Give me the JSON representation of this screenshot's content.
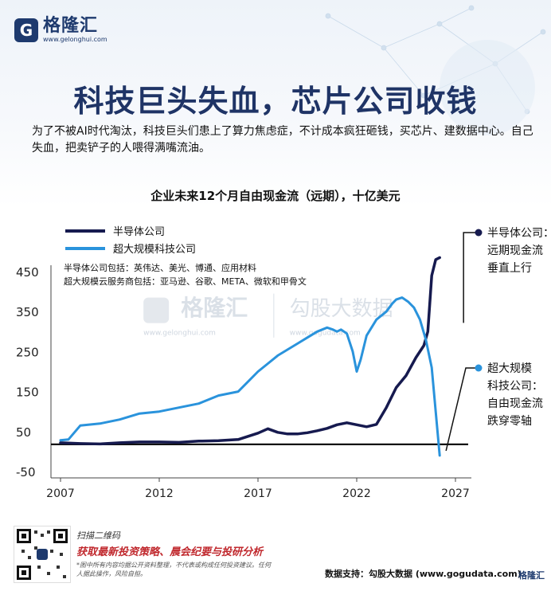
{
  "brand": {
    "mark": "G",
    "name": "格隆汇",
    "url": "www.gelonghui.com"
  },
  "headline": "科技巨头失血，芯片公司收钱",
  "subtitle": "为了不被AI时代淘汰，科技巨头们患上了算力焦虑症，不计成本疯狂砸钱，买芯片、建数据中心。自己失血，把卖铲子的人喂得满嘴流油。",
  "watermark": {
    "brand": "格隆汇",
    "url": "www.gelonghui.com",
    "partner": "勾股大数据",
    "partner_url": "www.gogudata.com"
  },
  "footer": {
    "scan_label": "扫描二维码",
    "promo": "获取最新投资策略、晨会纪要与投研分析",
    "disclaimer": "*图中所有内容均据公开资料整理，不代表或构成任何投资建议。任何人据此操作，风险自担。",
    "source": "数据支持：勾股大数据 (www.gogudata.com)",
    "corner_brand": "格隆汇"
  },
  "colors": {
    "semis": "#161a4f",
    "hyperscalers": "#2a93dc",
    "zero_line": "#111111",
    "title": "#1f3466"
  },
  "chart_data": {
    "type": "line",
    "title": "企业未来12个月自由现金流（远期），十亿美元",
    "xlabel": "",
    "ylabel": "",
    "xlim": [
      2006.2,
      2027.8
    ],
    "ylim": [
      -60,
      500
    ],
    "x_ticks": [
      "2007",
      "2012",
      "2017",
      "2022",
      "2027"
    ],
    "y_ticks": [
      "450",
      "350",
      "250",
      "150",
      "50",
      "-50"
    ],
    "legend": {
      "position": "top-left",
      "notes": [
        "半导体公司包括：英伟达、美光、博通、应用材料",
        "超大规模云服务商包括：亚马逊、谷歌、META、微软和甲骨文"
      ]
    },
    "series": [
      {
        "name": "半导体公司",
        "end_annotation": [
          "半导体公司：",
          "远期现金流",
          "垂直上行"
        ],
        "x": [
          2007.0,
          2008.0,
          2009.0,
          2010.0,
          2011.0,
          2012.0,
          2013.0,
          2014.0,
          2015.0,
          2016.0,
          2016.5,
          2017.0,
          2017.5,
          2018.0,
          2018.5,
          2019.0,
          2019.5,
          2020.0,
          2020.5,
          2021.0,
          2021.5,
          2022.0,
          2022.5,
          2023.0,
          2023.5,
          2024.0,
          2024.5,
          2025.0,
          2025.4,
          2025.6,
          2025.8,
          2026.0,
          2026.2
        ],
        "values": [
          22,
          20,
          19,
          22,
          24,
          24,
          23,
          26,
          27,
          30,
          38,
          46,
          57,
          48,
          44,
          44,
          47,
          52,
          58,
          67,
          72,
          67,
          62,
          68,
          110,
          160,
          190,
          235,
          265,
          300,
          440,
          480,
          485
        ]
      },
      {
        "name": "超大规模科技公司",
        "end_annotation": [
          "超大规模",
          "科技公司：",
          "自由现金流",
          "跌穿零轴"
        ],
        "x": [
          2007.0,
          2007.4,
          2008.0,
          2009.0,
          2010.0,
          2011.0,
          2012.0,
          2013.0,
          2014.0,
          2015.0,
          2016.0,
          2016.5,
          2017.0,
          2017.5,
          2018.0,
          2018.5,
          2019.0,
          2019.5,
          2020.0,
          2020.5,
          2020.8,
          2021.0,
          2021.2,
          2021.5,
          2021.8,
          2022.0,
          2022.2,
          2022.5,
          2023.0,
          2023.5,
          2023.8,
          2024.0,
          2024.3,
          2024.6,
          2024.9,
          2025.2,
          2025.5,
          2025.8,
          2026.0,
          2026.2
        ],
        "values": [
          28,
          30,
          65,
          70,
          80,
          95,
          100,
          110,
          120,
          140,
          150,
          175,
          200,
          220,
          240,
          255,
          270,
          285,
          300,
          310,
          305,
          300,
          305,
          295,
          250,
          200,
          230,
          290,
          330,
          350,
          370,
          380,
          385,
          375,
          360,
          330,
          280,
          210,
          100,
          -10
        ]
      }
    ],
    "zero_line": 18
  }
}
